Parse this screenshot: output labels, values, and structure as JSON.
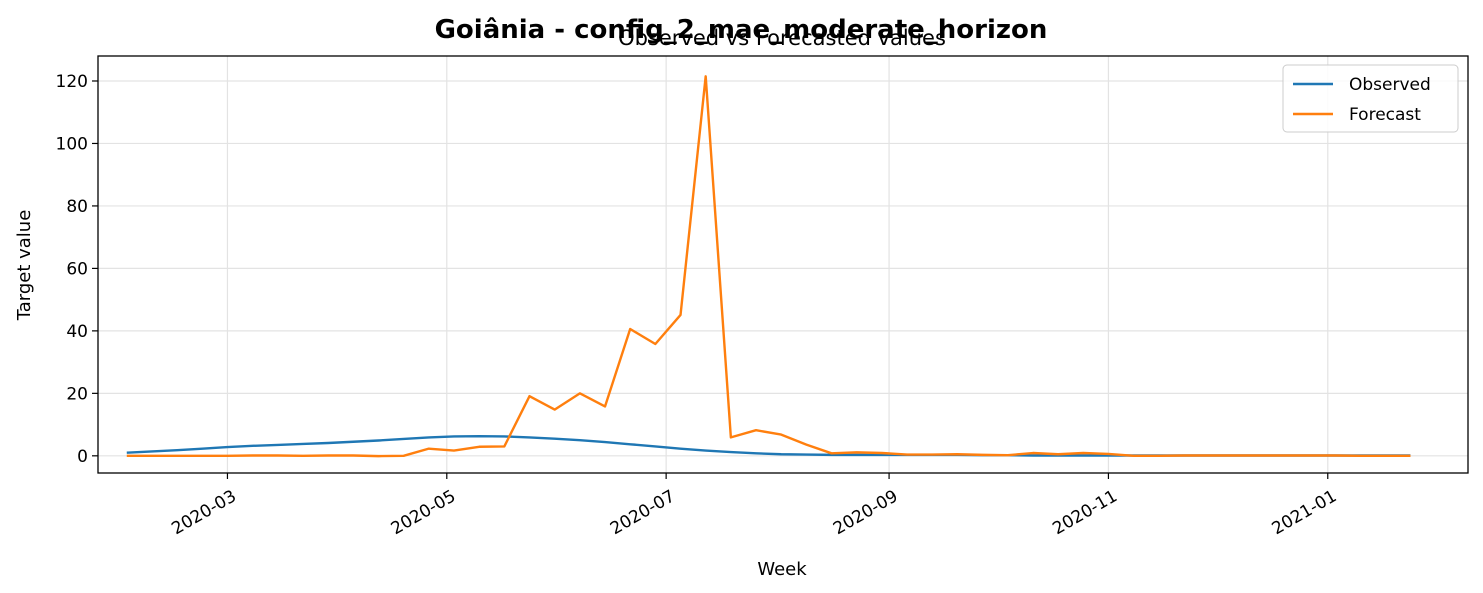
{
  "chart_data": {
    "type": "line",
    "suptitle": "Goiânia - config_2_mae_moderate_horizon",
    "title": "Observed vs Forecasted values",
    "xlabel": "Week",
    "ylabel": "Target value",
    "ylim": [
      -5.5,
      128
    ],
    "xlim": [
      "2020-01-25",
      "2021-02-09"
    ],
    "grid": true,
    "legend_position": "upper right",
    "x_ticks": [
      "2020-03-01",
      "2020-05-01",
      "2020-07-01",
      "2020-09-01",
      "2020-11-01",
      "2021-01-01"
    ],
    "x_tick_labels": [
      "2020-03",
      "2020-05",
      "2020-07",
      "2020-09",
      "2020-11",
      "2021-01"
    ],
    "y_ticks": [
      0,
      20,
      40,
      60,
      80,
      100,
      120
    ],
    "y_tick_labels": [
      "0",
      "20",
      "40",
      "60",
      "80",
      "100",
      "120"
    ],
    "x": [
      "2020-02-02",
      "2020-02-09",
      "2020-02-16",
      "2020-02-23",
      "2020-03-01",
      "2020-03-08",
      "2020-03-15",
      "2020-03-22",
      "2020-03-29",
      "2020-04-05",
      "2020-04-12",
      "2020-04-19",
      "2020-04-26",
      "2020-05-03",
      "2020-05-10",
      "2020-05-17",
      "2020-05-24",
      "2020-05-31",
      "2020-06-07",
      "2020-06-14",
      "2020-06-21",
      "2020-06-28",
      "2020-07-05",
      "2020-07-12",
      "2020-07-19",
      "2020-07-26",
      "2020-08-02",
      "2020-08-09",
      "2020-08-16",
      "2020-08-23",
      "2020-08-30",
      "2020-09-06",
      "2020-09-13",
      "2020-09-20",
      "2020-09-27",
      "2020-10-04",
      "2020-10-11",
      "2020-10-18",
      "2020-10-25",
      "2020-11-01",
      "2020-11-08",
      "2020-11-15",
      "2020-11-22",
      "2020-11-29",
      "2020-12-06",
      "2020-12-13",
      "2020-12-20",
      "2020-12-27",
      "2021-01-03",
      "2021-01-10",
      "2021-01-17",
      "2021-01-24"
    ],
    "series": [
      {
        "name": "Observed",
        "color": "#1f77b4",
        "values": [
          1.0,
          1.4,
          1.8,
          2.3,
          2.8,
          3.2,
          3.5,
          3.8,
          4.1,
          4.5,
          4.9,
          5.4,
          5.9,
          6.2,
          6.3,
          6.2,
          5.9,
          5.5,
          5.0,
          4.4,
          3.7,
          3.0,
          2.3,
          1.7,
          1.2,
          0.8,
          0.5,
          0.4,
          0.3,
          0.3,
          0.3,
          0.3,
          0.3,
          0.3,
          0.2,
          0.2,
          0.1,
          0.1,
          0.1,
          0.1,
          0.1,
          0.1,
          0.1,
          0.1,
          0.1,
          0.1,
          0.1,
          0.1,
          0.1,
          0.1,
          0.1,
          0.1
        ]
      },
      {
        "name": "Forecast",
        "color": "#ff7f0e",
        "values": [
          0.0,
          0.0,
          0.0,
          0.0,
          0.0,
          0.1,
          0.1,
          0.0,
          0.1,
          0.1,
          -0.1,
          0.0,
          2.3,
          1.7,
          2.9,
          3.0,
          19.1,
          14.8,
          20.0,
          15.8,
          40.6,
          35.8,
          45.1,
          121.5,
          5.9,
          8.2,
          6.8,
          3.6,
          0.8,
          1.1,
          0.9,
          0.4,
          0.4,
          0.5,
          0.3,
          0.2,
          0.9,
          0.5,
          0.9,
          0.6,
          0.0,
          0.0,
          0.1,
          0.1,
          0.1,
          0.1,
          0.1,
          0.1,
          0.1,
          0.0,
          0.0,
          0.0
        ]
      }
    ]
  }
}
